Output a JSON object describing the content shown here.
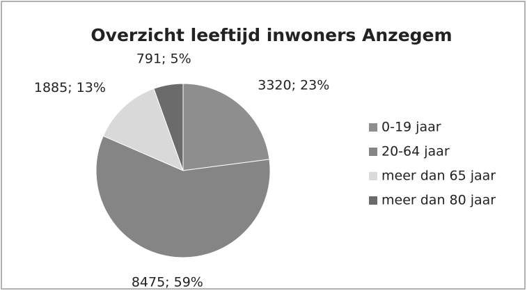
{
  "chart_data": {
    "type": "pie",
    "title": "Overzicht leeftijd inwoners Anzegem",
    "categories": [
      "0-19 jaar",
      "20-64 jaar",
      "meer dan 65 jaar",
      "meer dan 80 jaar"
    ],
    "values": [
      3320,
      8475,
      1885,
      791
    ],
    "value_labels": [
      "3320; 23%",
      "8475; 59%",
      "1885; 13%",
      "791; 5%"
    ],
    "colors": [
      "#8e8e8e",
      "#858585",
      "#d9d9d9",
      "#6b6b6b"
    ],
    "legend": "right"
  }
}
